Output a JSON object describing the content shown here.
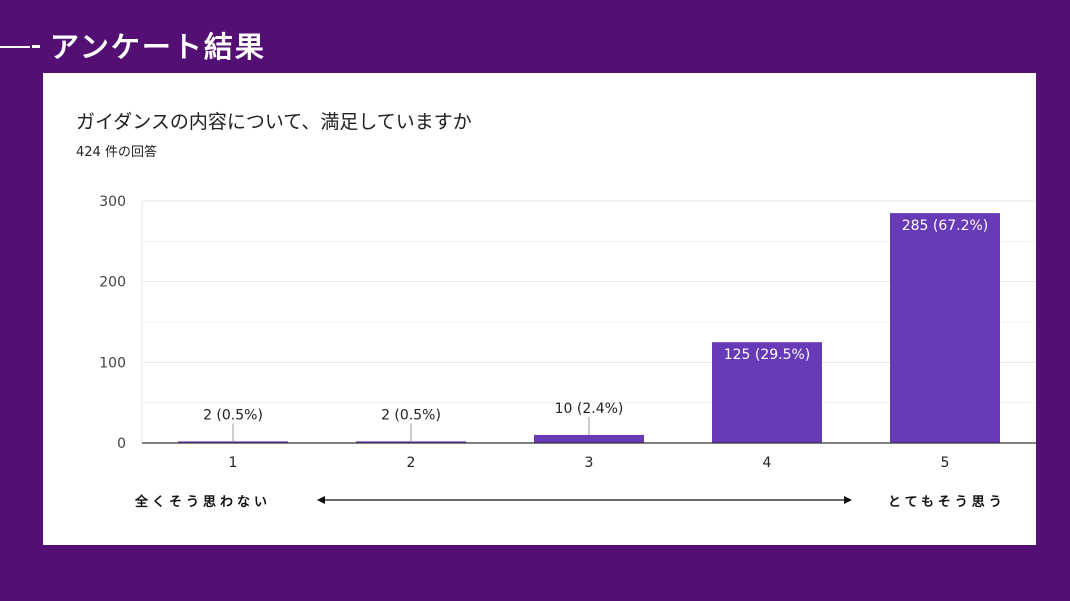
{
  "slide": {
    "title": "アンケート結果",
    "background": "#530f74"
  },
  "card": {
    "question": "ガイダンスの内容について、満足していますか",
    "response_count": "424 件の回答",
    "scale_low_label": "全くそう思わない",
    "scale_high_label": "とてもそう思う"
  },
  "chart_data": {
    "type": "bar",
    "title": "ガイダンスの内容について、満足していますか",
    "subtitle": "424 件の回答",
    "categories": [
      "1",
      "2",
      "3",
      "4",
      "5"
    ],
    "values": [
      2,
      2,
      10,
      125,
      285
    ],
    "data_labels": [
      "2 (0.5%)",
      "2 (0.5%)",
      "10 (2.4%)",
      "125 (29.5%)",
      "285 (67.2%)"
    ],
    "ylim": [
      0,
      300
    ],
    "yticks": [
      0,
      100,
      200,
      300
    ],
    "grid": true,
    "bar_color": "#673ab7",
    "xlabel": "",
    "ylabel": ""
  }
}
